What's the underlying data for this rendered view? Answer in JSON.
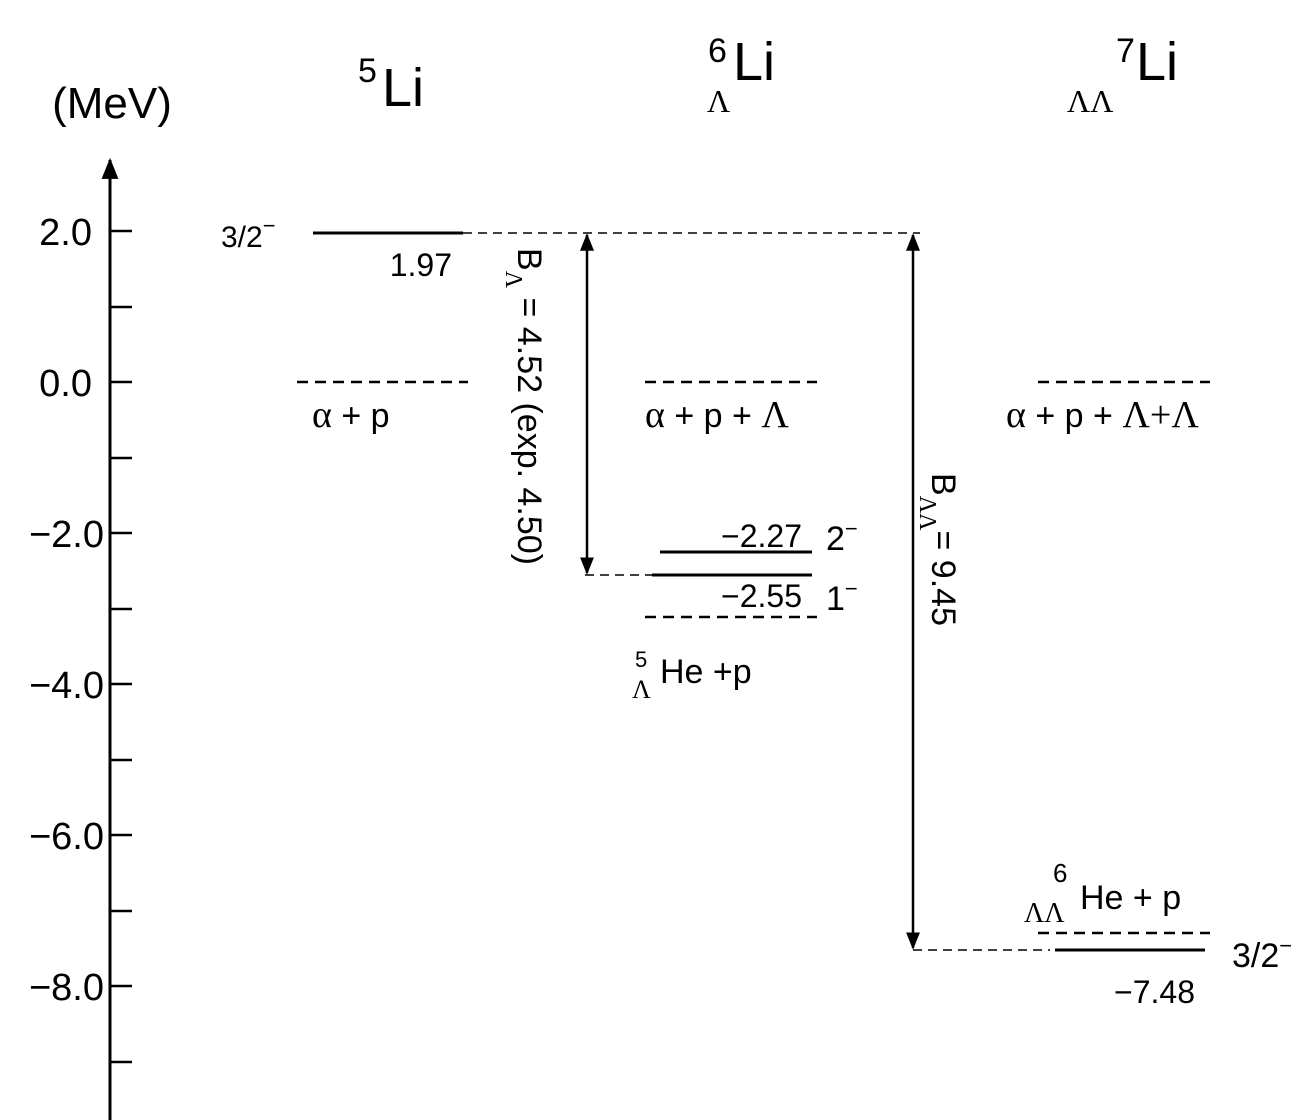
{
  "axis": {
    "unit": "(MeV)",
    "ticks": [
      "2.0",
      "0.0",
      "−2.0",
      "−4.0",
      "−6.0",
      "−8.0"
    ]
  },
  "nuclei": {
    "li5": {
      "mass": "5",
      "symbol": "Li"
    },
    "li6": {
      "mass": "6",
      "symbol": "Li",
      "subscript": "Λ"
    },
    "li7": {
      "mass": "7",
      "symbol": "Li",
      "subscript": "ΛΛ"
    }
  },
  "levels": {
    "li5_ground": {
      "energy": "1.97",
      "jp": "3/2",
      "parity": "−"
    },
    "li6_excited": {
      "energy": "−2.27",
      "jp": "2",
      "parity": "−"
    },
    "li6_ground": {
      "energy": "−2.55",
      "jp": "1",
      "parity": "−"
    },
    "li7_ground": {
      "energy": "−7.48",
      "jp": "3/2",
      "parity": "−"
    }
  },
  "thresholds": {
    "li5": {
      "alpha": "α",
      "rest": " + p"
    },
    "li6": {
      "alpha": "α",
      "rest": " + p + ",
      "lambda": "Λ"
    },
    "li7": {
      "alpha": "α",
      "rest": " + p + ",
      "lambda": "Λ+Λ"
    },
    "he5": {
      "mass": "5",
      "sub": "Λ",
      "rest": "He +p"
    },
    "he6": {
      "mass": "6",
      "sub": "ΛΛ",
      "rest": " He + p"
    }
  },
  "binding": {
    "single": {
      "b": "B",
      "sub": "Λ",
      "text": " = 4.52 (exp. 4.50)"
    },
    "double": {
      "b": "B",
      "sub": "ΛΛ",
      "text": "= 9.45"
    }
  }
}
